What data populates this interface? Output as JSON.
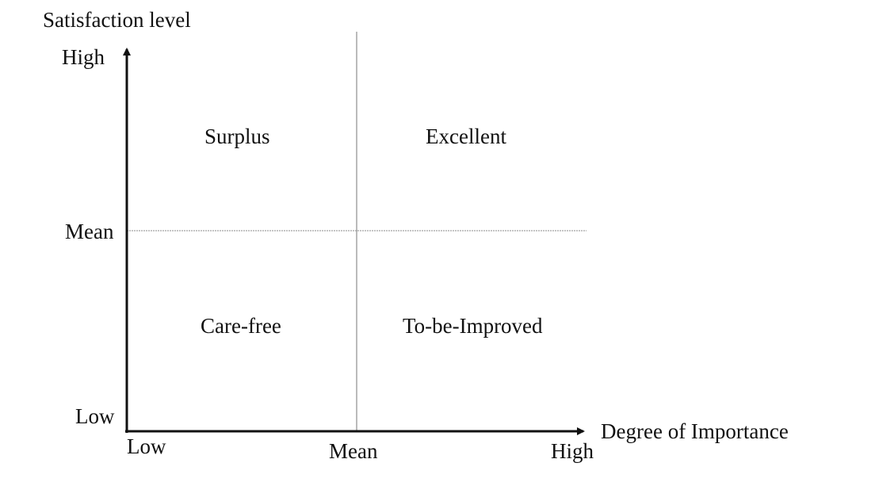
{
  "axes": {
    "y_title": "Satisfaction level",
    "x_title": "Degree of Importance",
    "y_ticks": {
      "high": "High",
      "mean": "Mean",
      "low": "Low"
    },
    "x_ticks": {
      "low": "Low",
      "mean": "Mean",
      "high": "High"
    }
  },
  "quadrants": {
    "top_left": "Surplus",
    "top_right": "Excellent",
    "bottom_left": "Care-free",
    "bottom_right": "To-be-Improved"
  },
  "colors": {
    "ink": "#111111",
    "divider": "#777777"
  }
}
